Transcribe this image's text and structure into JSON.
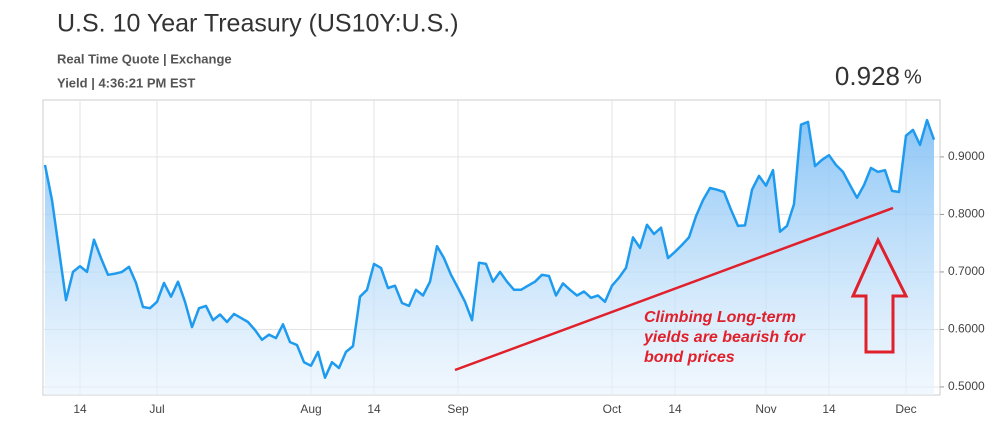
{
  "chart_data": {
    "type": "area",
    "title": "U.S. 10 Year Treasury (US10Y:U.S.)",
    "subtitle": [
      "Real Time Quote | Exchange",
      "Yield | 4:36:21 PM EST"
    ],
    "quote_value": "0.928",
    "quote_unit": "%",
    "annotation": [
      "Climbing Long-term",
      "yields are bearish for",
      "bond prices"
    ],
    "color": "#1e9bef",
    "categories": [
      null,
      null,
      null,
      null,
      null,
      "14",
      null,
      null,
      null,
      null,
      null,
      null,
      null,
      null,
      null,
      null,
      "Jul",
      null,
      null,
      null,
      null,
      null,
      null,
      null,
      null,
      null,
      null,
      null,
      null,
      null,
      null,
      null,
      null,
      null,
      null,
      null,
      null,
      null,
      "Aug",
      null,
      null,
      null,
      null,
      null,
      null,
      null,
      null,
      "14",
      null,
      null,
      null,
      null,
      null,
      null,
      null,
      null,
      null,
      null,
      null,
      "Sep",
      null,
      null,
      null,
      null,
      null,
      null,
      null,
      null,
      null,
      null,
      null,
      null,
      null,
      null,
      null,
      null,
      null,
      null,
      null,
      null,
      null,
      "Oct",
      null,
      null,
      null,
      null,
      null,
      null,
      null,
      null,
      "14",
      null,
      null,
      null,
      null,
      null,
      null,
      null,
      null,
      null,
      null,
      null,
      null,
      "Nov",
      null,
      null,
      null,
      null,
      null,
      null,
      null,
      null,
      "14",
      null,
      null,
      null,
      null,
      null,
      null,
      null,
      null,
      null,
      null,
      "Dec",
      null,
      null,
      null,
      null
    ],
    "values": [
      0.886,
      0.825,
      0.738,
      0.651,
      0.7,
      0.71,
      0.7,
      0.756,
      0.724,
      0.695,
      0.697,
      0.7,
      0.709,
      0.681,
      0.639,
      0.637,
      0.648,
      0.681,
      0.657,
      0.683,
      0.648,
      0.604,
      0.637,
      0.641,
      0.616,
      0.626,
      0.613,
      0.627,
      0.62,
      0.613,
      0.599,
      0.582,
      0.591,
      0.585,
      0.609,
      0.578,
      0.573,
      0.543,
      0.537,
      0.561,
      0.516,
      0.543,
      0.533,
      0.561,
      0.571,
      0.657,
      0.669,
      0.714,
      0.707,
      0.672,
      0.676,
      0.646,
      0.641,
      0.669,
      0.659,
      0.683,
      0.745,
      0.724,
      0.695,
      0.672,
      0.648,
      0.616,
      0.716,
      0.714,
      0.683,
      0.7,
      0.683,
      0.669,
      0.669,
      0.676,
      0.683,
      0.695,
      0.693,
      0.659,
      0.68,
      0.669,
      0.659,
      0.666,
      0.655,
      0.659,
      0.648,
      0.676,
      0.69,
      0.707,
      0.76,
      0.742,
      0.782,
      0.766,
      0.777,
      0.724,
      0.735,
      0.747,
      0.76,
      0.797,
      0.825,
      0.846,
      0.843,
      0.839,
      0.808,
      0.78,
      0.781,
      0.843,
      0.867,
      0.85,
      0.877,
      0.77,
      0.78,
      0.818,
      0.956,
      0.961,
      0.884,
      0.895,
      0.903,
      0.886,
      0.874,
      0.851,
      0.829,
      0.851,
      0.881,
      0.874,
      0.877,
      0.841,
      0.839,
      0.937,
      0.947,
      0.921,
      0.964,
      0.93
    ],
    "ylim": [
      0.486,
      0.999
    ],
    "yticks": [
      {
        "value": 0.5,
        "label": "0.5000"
      },
      {
        "value": 0.6,
        "label": "0.6000"
      },
      {
        "value": 0.7,
        "label": "0.7000"
      },
      {
        "value": 0.8,
        "label": "0.8000"
      },
      {
        "value": 0.9,
        "label": "0.9000"
      }
    ],
    "grid": true
  }
}
